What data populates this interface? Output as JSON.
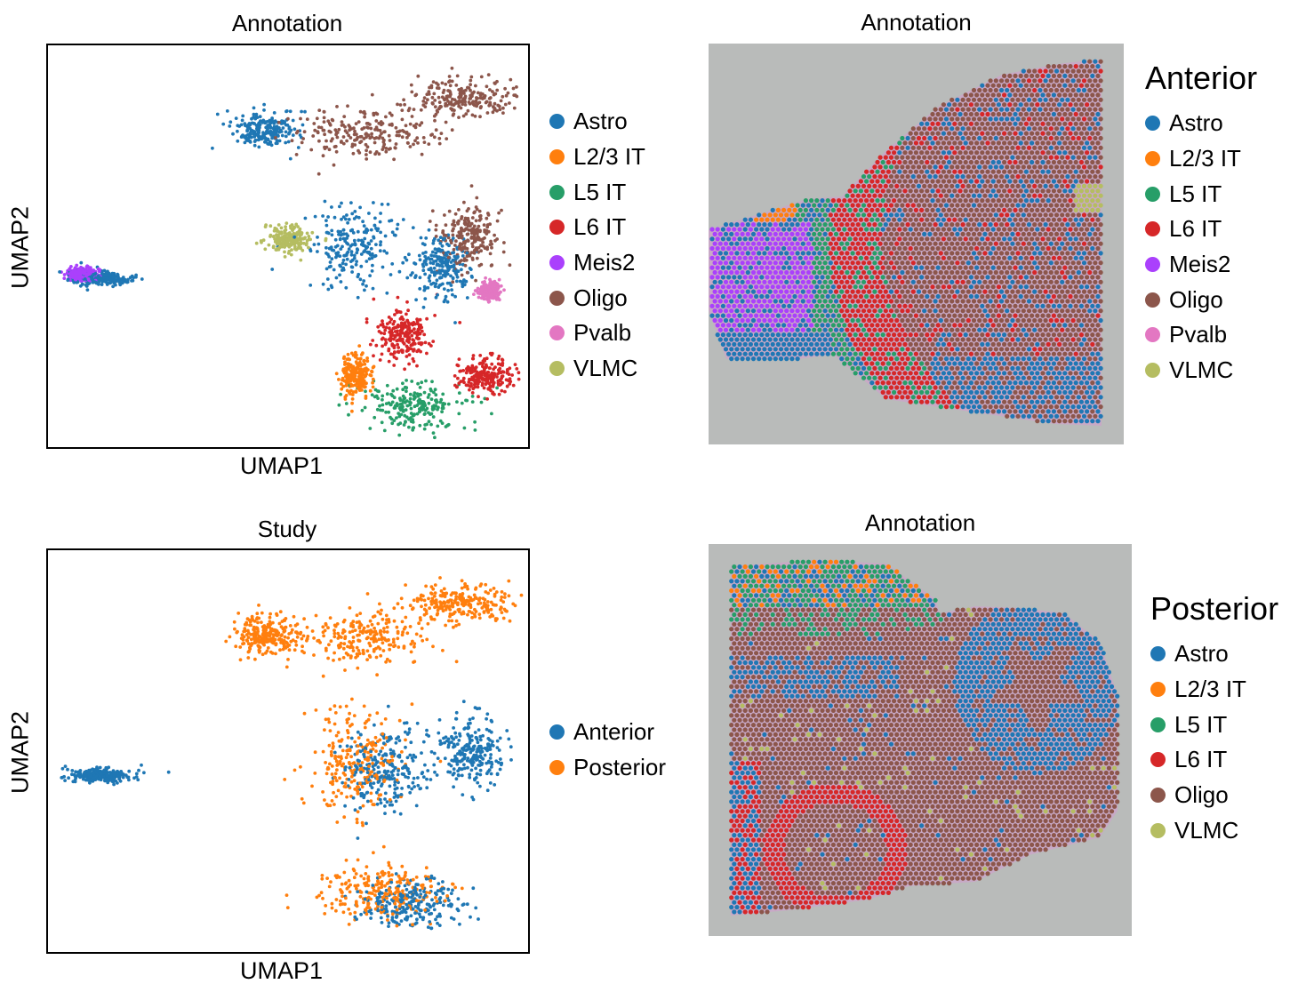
{
  "palette": {
    "Astro": "#1f77b4",
    "L2/3 IT": "#ff7f0e",
    "L5 IT": "#279e68",
    "L6 IT": "#d62728",
    "Meis2": "#aa40fc",
    "Oligo": "#8c564b",
    "Pvalb": "#e377c2",
    "VLMC": "#b5bd61",
    "Anterior": "#1f77b4",
    "Posterior": "#ff7f0e"
  },
  "chart_data": [
    {
      "type": "scatter",
      "title": "Annotation",
      "xlabel": "UMAP1",
      "ylabel": "UMAP2",
      "ticks": "none",
      "legend_position": "right",
      "legend_title": "",
      "legend": [
        "Astro",
        "L2/3 IT",
        "L5 IT",
        "L6 IT",
        "Meis2",
        "Oligo",
        "Pvalb",
        "VLMC"
      ],
      "series": [
        {
          "name": "Astro",
          "clusters": [
            [
              0.45,
              0.21,
              0.06,
              0.04
            ],
            [
              0.11,
              0.58,
              0.06,
              0.015
            ],
            [
              0.64,
              0.5,
              0.09,
              0.1
            ],
            [
              0.82,
              0.55,
              0.05,
              0.07
            ]
          ]
        },
        {
          "name": "L2/3 IT",
          "clusters": [
            [
              0.64,
              0.82,
              0.03,
              0.05
            ]
          ]
        },
        {
          "name": "L5 IT",
          "clusters": [
            [
              0.76,
              0.9,
              0.1,
              0.05
            ]
          ]
        },
        {
          "name": "L6 IT",
          "clusters": [
            [
              0.74,
              0.72,
              0.05,
              0.06
            ],
            [
              0.91,
              0.82,
              0.05,
              0.04
            ]
          ]
        },
        {
          "name": "Meis2",
          "clusters": [
            [
              0.07,
              0.57,
              0.03,
              0.015
            ]
          ]
        },
        {
          "name": "Oligo",
          "clusters": [
            [
              0.66,
              0.22,
              0.14,
              0.06
            ],
            [
              0.86,
              0.13,
              0.1,
              0.04
            ],
            [
              0.88,
              0.48,
              0.06,
              0.07
            ]
          ]
        },
        {
          "name": "Pvalb",
          "clusters": [
            [
              0.92,
              0.61,
              0.02,
              0.02
            ]
          ]
        },
        {
          "name": "VLMC",
          "clusters": [
            [
              0.5,
              0.48,
              0.04,
              0.03
            ]
          ]
        }
      ]
    },
    {
      "type": "scatter",
      "title": "Annotation",
      "legend_title": "Anterior",
      "legend_position": "right",
      "legend": [
        "Astro",
        "L2/3 IT",
        "L5 IT",
        "L6 IT",
        "Meis2",
        "Oligo",
        "Pvalb",
        "VLMC"
      ],
      "note_type": "spatial"
    },
    {
      "type": "scatter",
      "title": "Study",
      "xlabel": "UMAP1",
      "ylabel": "UMAP2",
      "ticks": "none",
      "legend_position": "right",
      "legend_title": "",
      "legend": [
        "Anterior",
        "Posterior"
      ],
      "series": [
        {
          "name": "Anterior",
          "clusters": [
            [
              0.11,
              0.56,
              0.06,
              0.015
            ],
            [
              0.88,
              0.5,
              0.06,
              0.08
            ],
            [
              0.76,
              0.88,
              0.1,
              0.05
            ],
            [
              0.7,
              0.55,
              0.08,
              0.1
            ]
          ]
        },
        {
          "name": "Posterior",
          "clusters": [
            [
              0.45,
              0.21,
              0.06,
              0.04
            ],
            [
              0.66,
              0.22,
              0.14,
              0.06
            ],
            [
              0.86,
              0.13,
              0.1,
              0.04
            ],
            [
              0.64,
              0.52,
              0.09,
              0.12
            ],
            [
              0.7,
              0.85,
              0.12,
              0.06
            ]
          ]
        }
      ]
    },
    {
      "type": "scatter",
      "title": "Annotation",
      "legend_title": "Posterior",
      "legend_position": "right",
      "legend": [
        "Astro",
        "L2/3 IT",
        "L5 IT",
        "L6 IT",
        "Oligo",
        "VLMC"
      ],
      "note_type": "spatial"
    }
  ]
}
